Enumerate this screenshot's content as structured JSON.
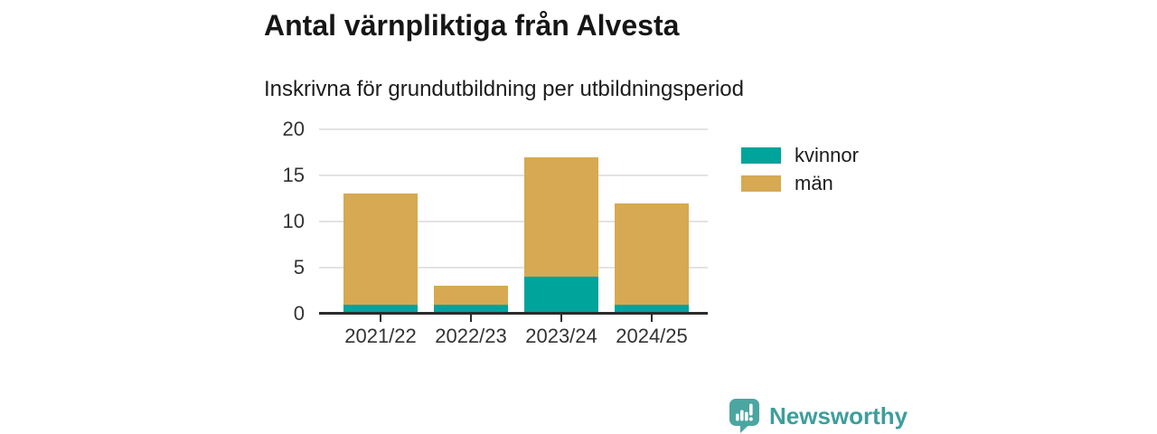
{
  "chart_data": {
    "type": "bar",
    "stacked": true,
    "title": "Antal värnpliktiga från Alvesta",
    "subtitle": "Inskrivna för grundutbildning per utbildningsperiod",
    "categories": [
      "2021/22",
      "2022/23",
      "2023/24",
      "2024/25"
    ],
    "series": [
      {
        "name": "kvinnor",
        "color": "#00a49a",
        "values": [
          1,
          1,
          4,
          1
        ]
      },
      {
        "name": "män",
        "color": "#d6a952",
        "values": [
          12,
          2,
          13,
          11
        ]
      }
    ],
    "totals": [
      13,
      3,
      17,
      12
    ],
    "xlabel": "",
    "ylabel": "",
    "ylim": [
      0,
      20
    ],
    "yticks": [
      0,
      5,
      10,
      15,
      20
    ],
    "grid": true,
    "legend_position": "right"
  },
  "footer": {
    "brand": "Newsworthy",
    "logo_icon": "bar-chart-speech-bubble-icon",
    "brand_color": "#3d9e9b",
    "logo_fill": "#4ba6a1"
  },
  "colors": {
    "axis": "#2b2b2b",
    "gridline": "#e3e3e3",
    "text": "#1c1c1c"
  }
}
